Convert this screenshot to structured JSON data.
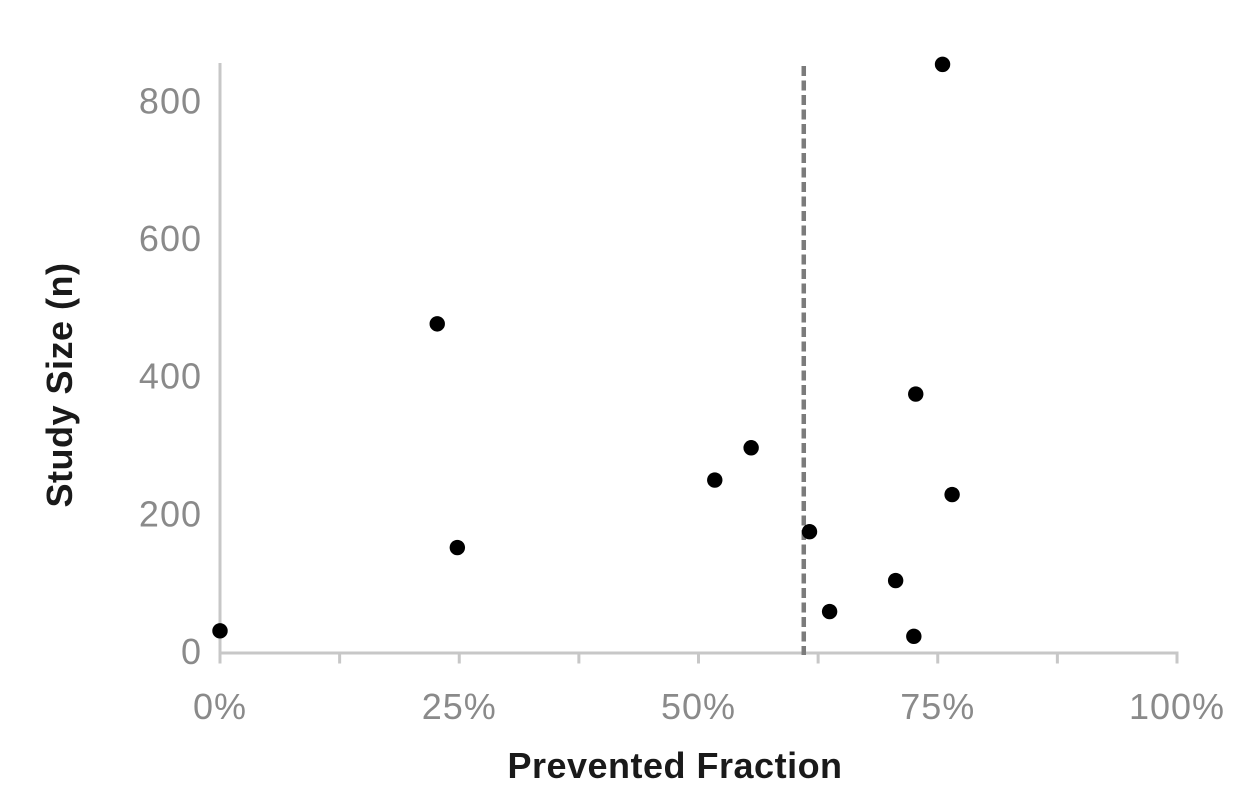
{
  "chart_data": {
    "type": "scatter",
    "title": "",
    "xlabel": "Prevented Fraction",
    "ylabel": "Study Size (n)",
    "xlim": [
      0,
      100
    ],
    "ylim": [
      0,
      855
    ],
    "grid": false,
    "legend": false,
    "x_ticks": [
      {
        "value": 0,
        "label": "0%"
      },
      {
        "value": 25,
        "label": "25%"
      },
      {
        "value": 50,
        "label": "50%"
      },
      {
        "value": 75,
        "label": "75%"
      },
      {
        "value": 100,
        "label": "100%"
      }
    ],
    "x_minor_ticks": [
      12.5,
      37.5,
      62.5,
      87.5
    ],
    "y_ticks": [
      {
        "value": 0,
        "label": "0"
      },
      {
        "value": 200,
        "label": "200"
      },
      {
        "value": 400,
        "label": "400"
      },
      {
        "value": 600,
        "label": "600"
      },
      {
        "value": 800,
        "label": "800"
      }
    ],
    "points": [
      {
        "x": 0,
        "y": 30
      },
      {
        "x": 22.7,
        "y": 476
      },
      {
        "x": 24.8,
        "y": 151
      },
      {
        "x": 51.7,
        "y": 249
      },
      {
        "x": 55.5,
        "y": 296
      },
      {
        "x": 61.6,
        "y": 174
      },
      {
        "x": 63.7,
        "y": 58
      },
      {
        "x": 70.6,
        "y": 103
      },
      {
        "x": 72.5,
        "y": 22
      },
      {
        "x": 72.7,
        "y": 374
      },
      {
        "x": 75.5,
        "y": 853
      },
      {
        "x": 76.5,
        "y": 228
      }
    ],
    "reference_line": {
      "x": 61,
      "style": "dashed",
      "color": "#7b7b7b"
    },
    "colors": {
      "point": "#000000",
      "axis_line": "#c7c7c7",
      "tick_label": "#8a8a8a",
      "axis_title": "#1a1a1a"
    }
  }
}
